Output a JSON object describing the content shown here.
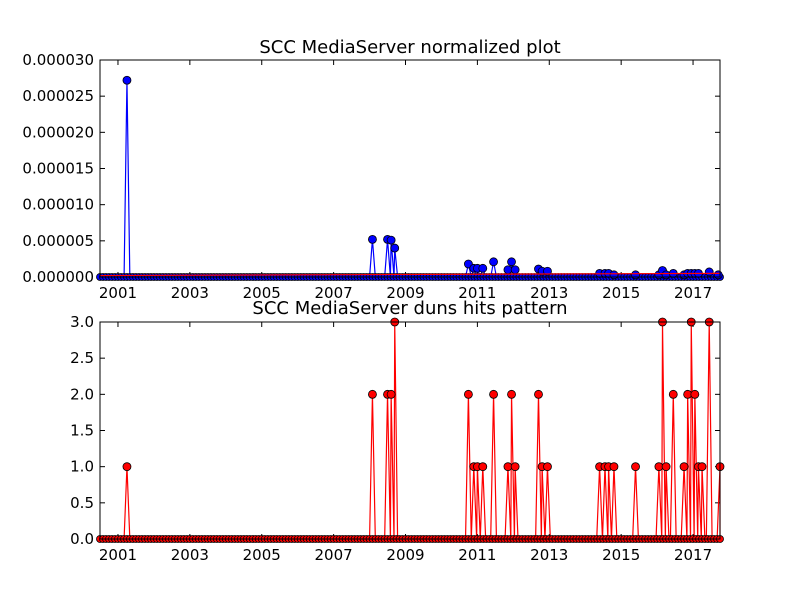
{
  "chart_data": [
    {
      "type": "line",
      "title": "SCC MediaServer normalized plot",
      "xlabel": "",
      "ylabel": "",
      "xlim": [
        2000.5,
        2017.75
      ],
      "ylim": [
        0,
        3e-05
      ],
      "grid": false,
      "x_ticks": [
        {
          "value": 2001,
          "label": "2001"
        },
        {
          "value": 2003,
          "label": "2003"
        },
        {
          "value": 2005,
          "label": "2005"
        },
        {
          "value": 2007,
          "label": "2007"
        },
        {
          "value": 2009,
          "label": "2009"
        },
        {
          "value": 2011,
          "label": "2011"
        },
        {
          "value": 2013,
          "label": "2013"
        },
        {
          "value": 2015,
          "label": "2015"
        },
        {
          "value": 2017,
          "label": "2017"
        }
      ],
      "y_ticks": [
        {
          "value": 0,
          "label": "0.000000"
        },
        {
          "value": 5e-06,
          "label": "0.000005"
        },
        {
          "value": 1e-05,
          "label": "0.000010"
        },
        {
          "value": 1.5e-05,
          "label": "0.000015"
        },
        {
          "value": 2e-05,
          "label": "0.000020"
        },
        {
          "value": 2.5e-05,
          "label": "0.000025"
        },
        {
          "value": 3e-05,
          "label": "0.000030"
        }
      ],
      "series": [
        {
          "color": "#0000ff",
          "points": [
            [
              2001.25,
              2.72e-05
            ],
            [
              2008.08,
              5.2e-06
            ],
            [
              2008.5,
              5.2e-06
            ],
            [
              2008.6,
              5.1e-06
            ],
            [
              2008.7,
              4e-06
            ],
            [
              2010.75,
              1.8e-06
            ],
            [
              2010.9,
              1.2e-06
            ],
            [
              2011.0,
              1.2e-06
            ],
            [
              2011.15,
              1.2e-06
            ],
            [
              2011.45,
              2.1e-06
            ],
            [
              2011.85,
              1e-06
            ],
            [
              2011.95,
              2.1e-06
            ],
            [
              2012.05,
              1e-06
            ],
            [
              2012.7,
              1.1e-06
            ],
            [
              2012.8,
              8e-07
            ],
            [
              2012.95,
              8e-07
            ],
            [
              2014.4,
              5e-07
            ],
            [
              2014.55,
              5e-07
            ],
            [
              2014.65,
              5e-07
            ],
            [
              2014.8,
              3e-07
            ],
            [
              2015.4,
              3e-07
            ],
            [
              2016.05,
              3e-07
            ],
            [
              2016.15,
              9e-07
            ],
            [
              2016.25,
              3e-07
            ],
            [
              2016.45,
              5e-07
            ],
            [
              2016.75,
              3e-07
            ],
            [
              2016.85,
              5e-07
            ],
            [
              2016.95,
              5e-07
            ],
            [
              2017.05,
              5e-07
            ],
            [
              2017.15,
              5e-07
            ],
            [
              2017.45,
              7e-07
            ],
            [
              2017.7,
              3e-07
            ]
          ]
        },
        {
          "color": "#ff0000",
          "points": [
            [
              2000.5,
              2e-07
            ],
            [
              2017.75,
              5e-07
            ]
          ]
        }
      ]
    },
    {
      "type": "line",
      "title": "SCC MediaServer duns hits pattern",
      "xlabel": "",
      "ylabel": "",
      "xlim": [
        2000.5,
        2017.75
      ],
      "ylim": [
        0,
        3
      ],
      "grid": false,
      "x_ticks": [
        {
          "value": 2001,
          "label": "2001"
        },
        {
          "value": 2003,
          "label": "2003"
        },
        {
          "value": 2005,
          "label": "2005"
        },
        {
          "value": 2007,
          "label": "2007"
        },
        {
          "value": 2009,
          "label": "2009"
        },
        {
          "value": 2011,
          "label": "2011"
        },
        {
          "value": 2013,
          "label": "2013"
        },
        {
          "value": 2015,
          "label": "2015"
        },
        {
          "value": 2017,
          "label": "2017"
        }
      ],
      "y_ticks": [
        {
          "value": 0,
          "label": "0.0"
        },
        {
          "value": 0.5,
          "label": "0.5"
        },
        {
          "value": 1,
          "label": "1.0"
        },
        {
          "value": 1.5,
          "label": "1.5"
        },
        {
          "value": 2,
          "label": "2.0"
        },
        {
          "value": 2.5,
          "label": "2.5"
        },
        {
          "value": 3,
          "label": "3.0"
        }
      ],
      "series": [
        {
          "color": "#ff0000",
          "points": [
            [
              2001.25,
              1
            ],
            [
              2008.08,
              2
            ],
            [
              2008.5,
              2
            ],
            [
              2008.6,
              2
            ],
            [
              2008.7,
              3
            ],
            [
              2010.75,
              2
            ],
            [
              2010.9,
              1
            ],
            [
              2011.0,
              1
            ],
            [
              2011.15,
              1
            ],
            [
              2011.45,
              2
            ],
            [
              2011.85,
              1
            ],
            [
              2011.95,
              2
            ],
            [
              2012.05,
              1
            ],
            [
              2012.7,
              2
            ],
            [
              2012.8,
              1
            ],
            [
              2012.95,
              1
            ],
            [
              2014.4,
              1
            ],
            [
              2014.55,
              1
            ],
            [
              2014.65,
              1
            ],
            [
              2014.8,
              1
            ],
            [
              2015.4,
              1
            ],
            [
              2016.05,
              1
            ],
            [
              2016.15,
              3
            ],
            [
              2016.25,
              1
            ],
            [
              2016.45,
              2
            ],
            [
              2016.75,
              1
            ],
            [
              2016.85,
              2
            ],
            [
              2016.95,
              3
            ],
            [
              2017.05,
              2
            ],
            [
              2017.15,
              1
            ],
            [
              2017.25,
              1
            ],
            [
              2017.45,
              3
            ],
            [
              2017.75,
              1
            ]
          ]
        }
      ]
    }
  ]
}
